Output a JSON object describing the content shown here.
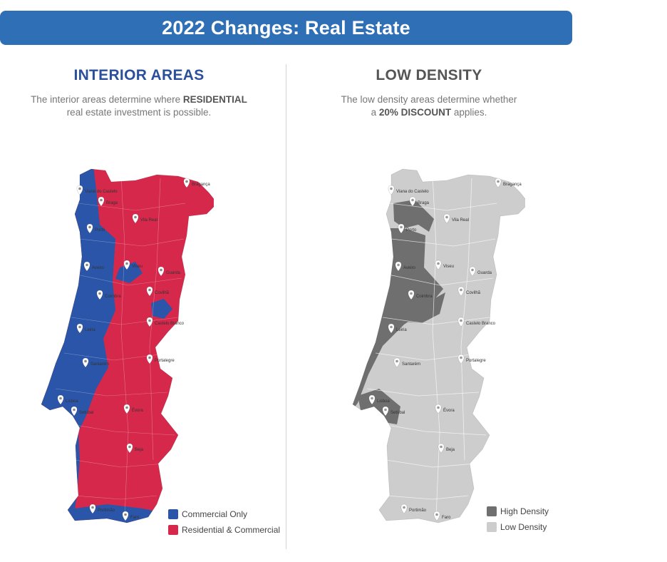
{
  "banner": {
    "title": "2022 Changes: Real Estate"
  },
  "left_panel": {
    "title": "INTERIOR AREAS",
    "desc_line1_pre": "The interior areas determine where ",
    "desc_line1_bold": "RESIDENTIAL",
    "desc_line2": "real estate investment is possible."
  },
  "right_panel": {
    "title": "LOW DENSITY",
    "desc_line1": "The low density areas determine whether",
    "desc_line2_pre": "a ",
    "desc_line2_bold": "20% DISCOUNT",
    "desc_line2_post": " applies."
  },
  "legend_left": [
    {
      "label": "Commercial Only",
      "color": "#2a55a8"
    },
    {
      "label": "Residential & Commercial",
      "color": "#d6284b"
    }
  ],
  "legend_right": [
    {
      "label": "High Density",
      "color": "#6f6f6f"
    },
    {
      "label": "Low Density",
      "color": "#cdcdcd"
    }
  ],
  "colors": {
    "commercial": "#2a55a8",
    "residential": "#d6284b",
    "high_density": "#6f6f6f",
    "low_density": "#cdcdcd"
  },
  "cities": [
    "Viana do Castelo",
    "Braga",
    "Bragança",
    "Vila Real",
    "Porto",
    "Aveiro",
    "Viseu",
    "Guarda",
    "Coimbra",
    "Covilhã",
    "Castelo Branco",
    "Leiria",
    "Santarém",
    "Portalegre",
    "Lisboa",
    "Setúbal",
    "Évora",
    "Beja",
    "Portimão",
    "Faro"
  ]
}
